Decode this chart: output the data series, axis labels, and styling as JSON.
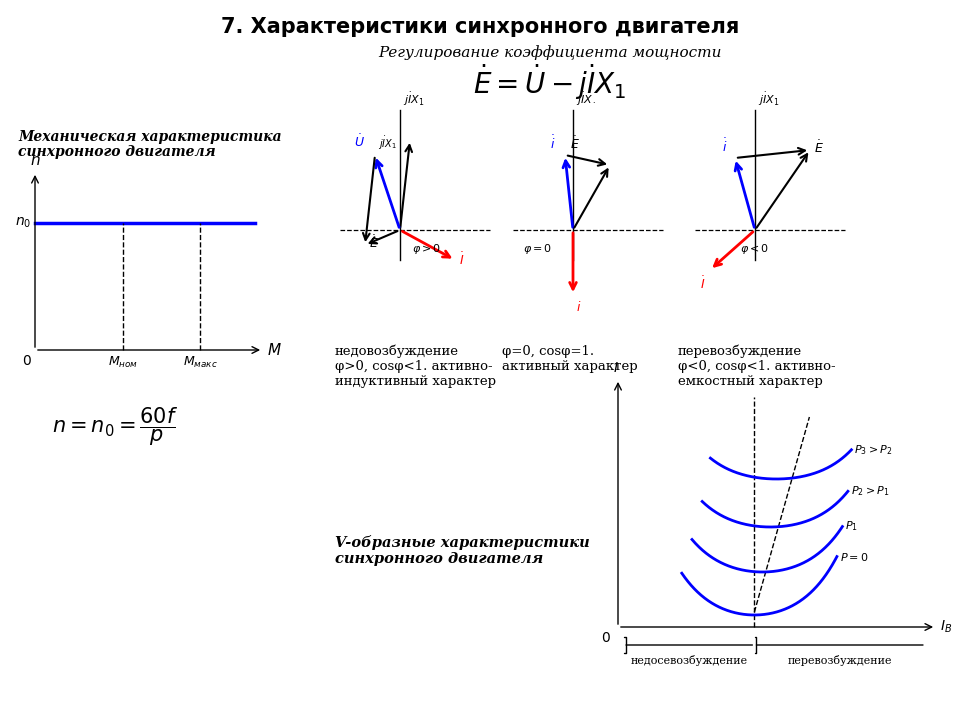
{
  "title": "7. Характеристики синхронного двигателя",
  "subtitle_italic": "Регулирование коэффициента мощности",
  "mech_label1": "Механическая характеристика",
  "mech_label2": "синхронного двигателя",
  "v_label1": "V-образные характеристики",
  "v_label2": "синхронного двигателя",
  "label1_line1": "недовозбуждение",
  "label1_line2": "φ>0, cosφ<1. активно-",
  "label1_line3": "индуктивный характер",
  "label2_line1": "φ=0, cosφ=1.",
  "label2_line2": "активный характер",
  "label3_line1": "перевозбуждение",
  "label3_line2": "φ<0, cosφ<1. активно-",
  "label3_line3": "емкостный характер",
  "label_under": "недосевозбуждение",
  "label_over": "перевозбуждение",
  "bg_color": "#ffffff"
}
